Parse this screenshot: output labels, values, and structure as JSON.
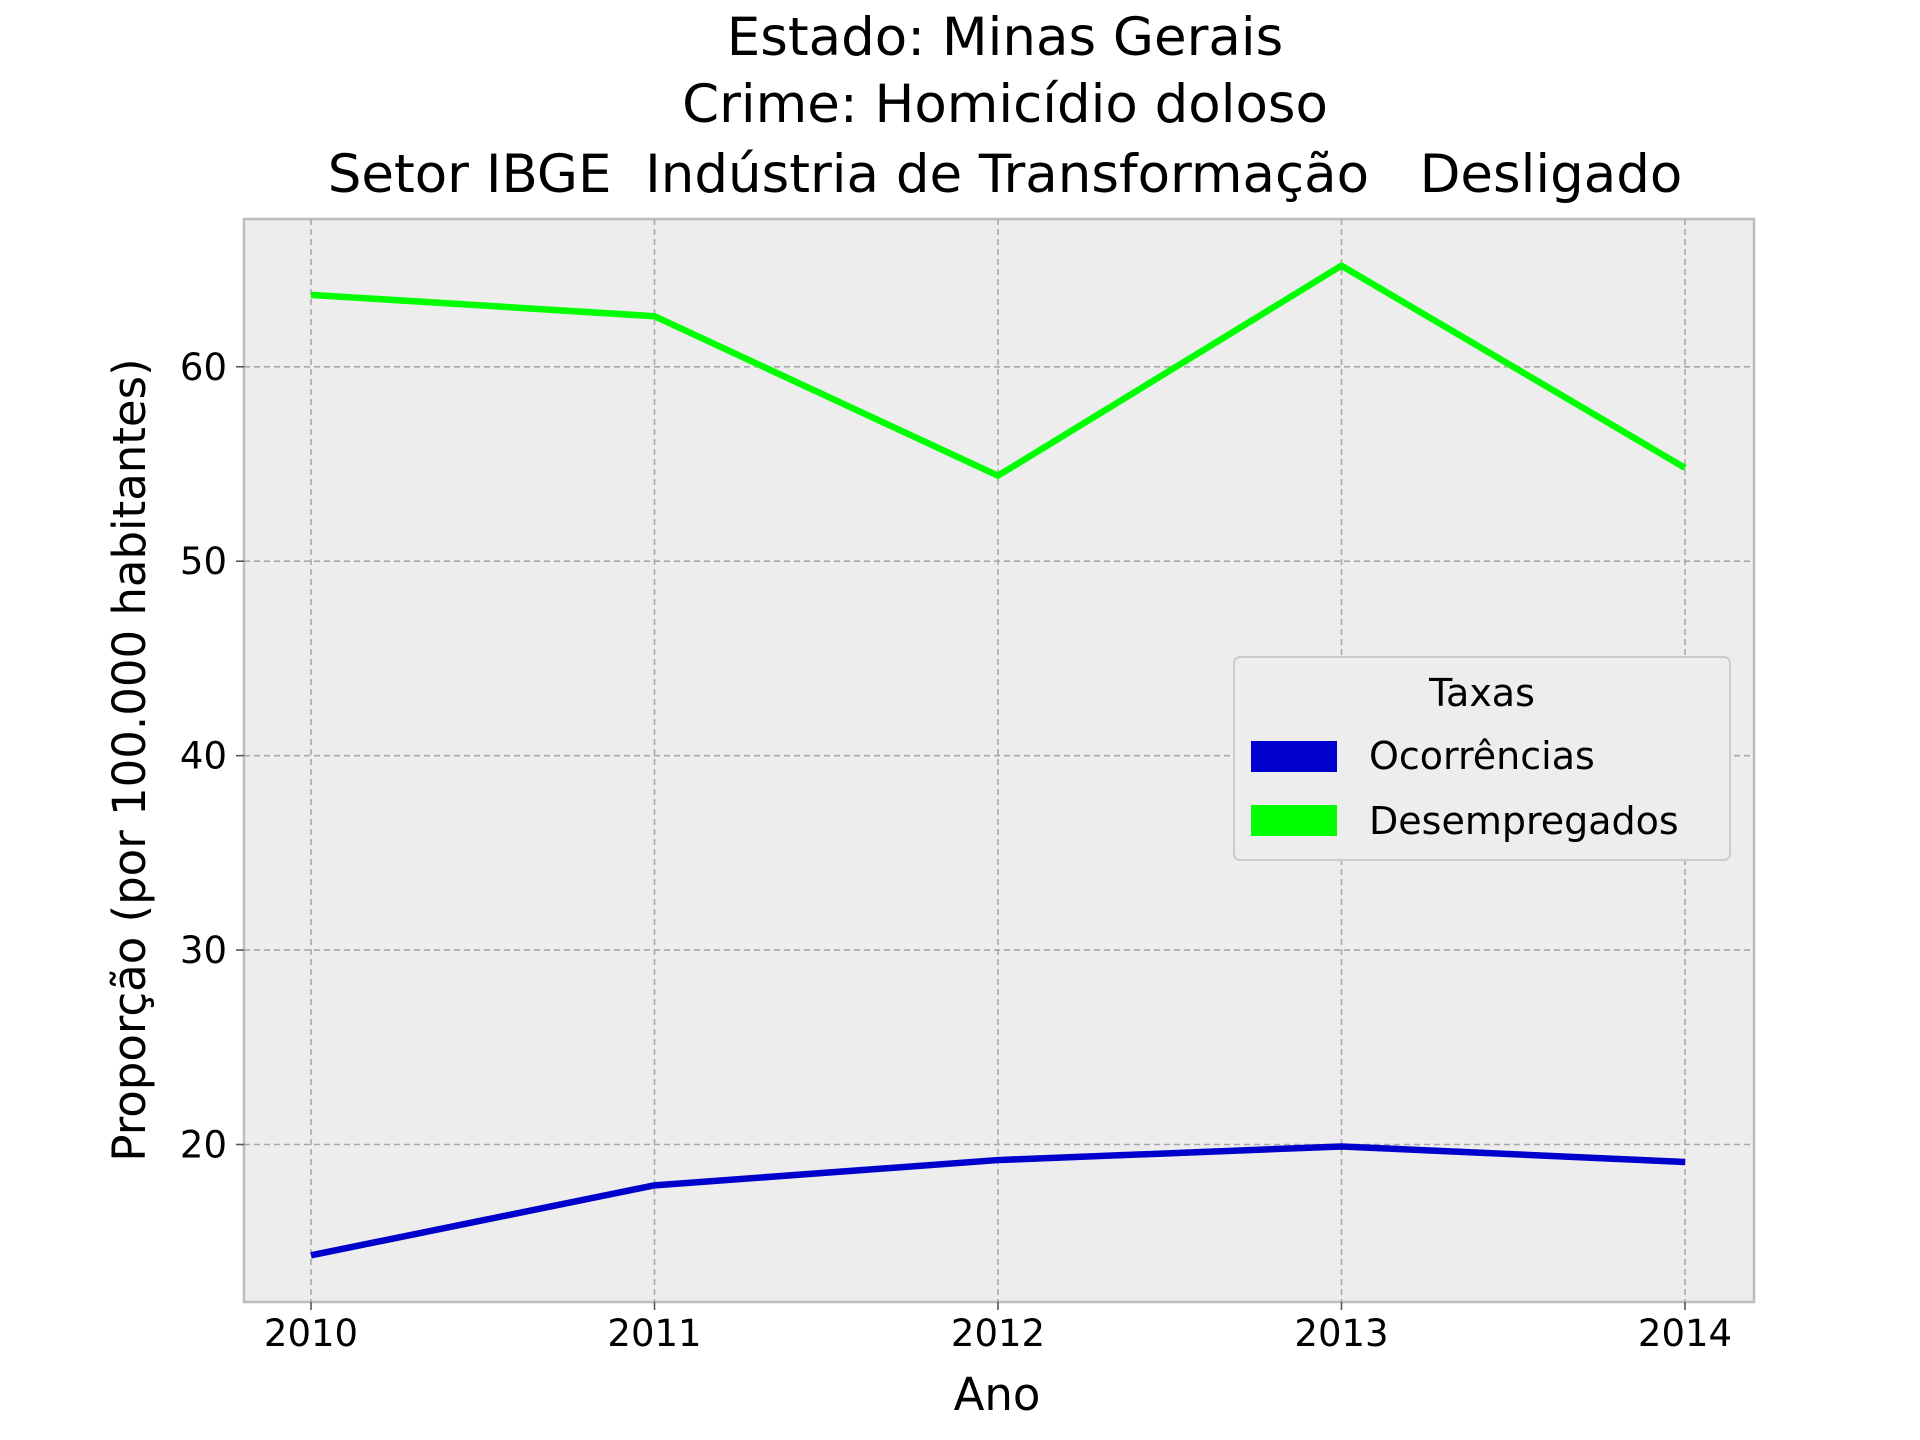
{
  "chart_data": {
    "type": "line",
    "title": "Estado: Minas Gerais",
    "subtitle_lines": [
      "Crime: Homicídio doloso",
      "Setor IBGE  Indústria de Transformação   Desligado"
    ],
    "xlabel": "Ano",
    "ylabel": "Proporção (por 100.000 habitantes)",
    "x": [
      "2010",
      "2011",
      "2012",
      "2013",
      "2014"
    ],
    "x_ticks": [
      "2010",
      "2011",
      "2012",
      "2013",
      "2014"
    ],
    "y_ticks": [
      "20",
      "30",
      "40",
      "50",
      "60"
    ],
    "ylim": [
      11.9,
      67.6
    ],
    "grid": true,
    "background": "#ededed",
    "legend": {
      "title": "Taxas",
      "placement": "center-right"
    },
    "series": [
      {
        "name": "Ocorrências",
        "color": "#0000cc",
        "values": [
          14.3,
          17.9,
          19.2,
          19.9,
          19.1
        ]
      },
      {
        "name": "Desempregados",
        "color": "#00ff00",
        "values": [
          63.7,
          62.6,
          54.4,
          65.2,
          54.8
        ]
      }
    ]
  }
}
